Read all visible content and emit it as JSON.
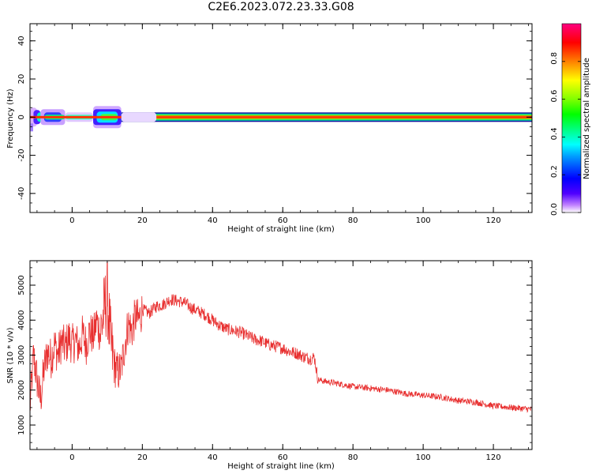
{
  "title": "C2E6.2023.072.23.33.G08",
  "chart_data": [
    {
      "type": "heatmap",
      "xlabel": "Height of straight line (km)",
      "ylabel": "Frequency (Hz)",
      "xlim": [
        -12,
        131
      ],
      "ylim": [
        -50,
        49
      ],
      "xticks": [
        0,
        20,
        40,
        60,
        80,
        100,
        120
      ],
      "yticks": [
        -40,
        -20,
        0,
        20,
        40
      ],
      "colorbar": {
        "label": "Normalized spectral amplitude",
        "range": [
          0,
          1
        ],
        "ticks": [
          "0.0",
          "0.2",
          "0.4",
          "0.6",
          "0.8"
        ],
        "colormap": [
          "#ffffff",
          "#c080ff",
          "#5000ff",
          "#0000ff",
          "#00a0ff",
          "#00ffff",
          "#00ff80",
          "#00ff00",
          "#80ff00",
          "#ffff00",
          "#ff8000",
          "#ff0000",
          "#ff0080"
        ]
      },
      "band_center_hz": 0
    },
    {
      "type": "line",
      "xlabel": "Height of straight line (km)",
      "ylabel": "SNR (10 * v/v)",
      "xlim": [
        -12,
        131
      ],
      "ylim": [
        300,
        5700
      ],
      "xticks": [
        0,
        20,
        40,
        60,
        80,
        100,
        120
      ],
      "yticks": [
        1000,
        2000,
        3000,
        4000,
        5000
      ],
      "color": "#e83030",
      "series": [
        {
          "x": [
            -12,
            -11,
            -10,
            -9,
            -8,
            -7,
            -6,
            -5,
            -4,
            -3,
            -2,
            -1,
            0,
            1,
            2,
            3,
            4,
            5,
            6,
            7,
            8,
            9,
            10,
            11,
            12,
            13,
            14,
            15,
            16,
            17,
            18,
            19,
            20,
            22,
            24,
            26,
            28,
            30,
            32,
            34,
            36,
            38,
            40,
            42,
            44,
            46,
            48,
            50,
            52,
            54,
            56,
            58,
            60,
            62,
            64,
            66,
            68,
            69,
            70,
            72,
            75,
            80,
            85,
            90,
            95,
            100,
            105,
            110,
            115,
            120,
            125,
            131
          ],
          "y": [
            1500,
            3000,
            2300,
            1700,
            2600,
            3100,
            2900,
            3300,
            3000,
            3400,
            3200,
            3500,
            3300,
            3400,
            3200,
            3600,
            3300,
            3700,
            3500,
            4000,
            3600,
            4200,
            4700,
            3300,
            2700,
            2500,
            2600,
            3300,
            3900,
            3700,
            4100,
            4000,
            4300,
            4200,
            4400,
            4450,
            4600,
            4550,
            4500,
            4350,
            4250,
            4150,
            4000,
            3850,
            3750,
            3700,
            3650,
            3550,
            3450,
            3400,
            3300,
            3250,
            3200,
            3100,
            3050,
            2950,
            2900,
            2950,
            2300,
            2250,
            2200,
            2100,
            2050,
            2000,
            1900,
            1850,
            1800,
            1700,
            1650,
            1550,
            1500,
            1450
          ]
        }
      ]
    }
  ]
}
